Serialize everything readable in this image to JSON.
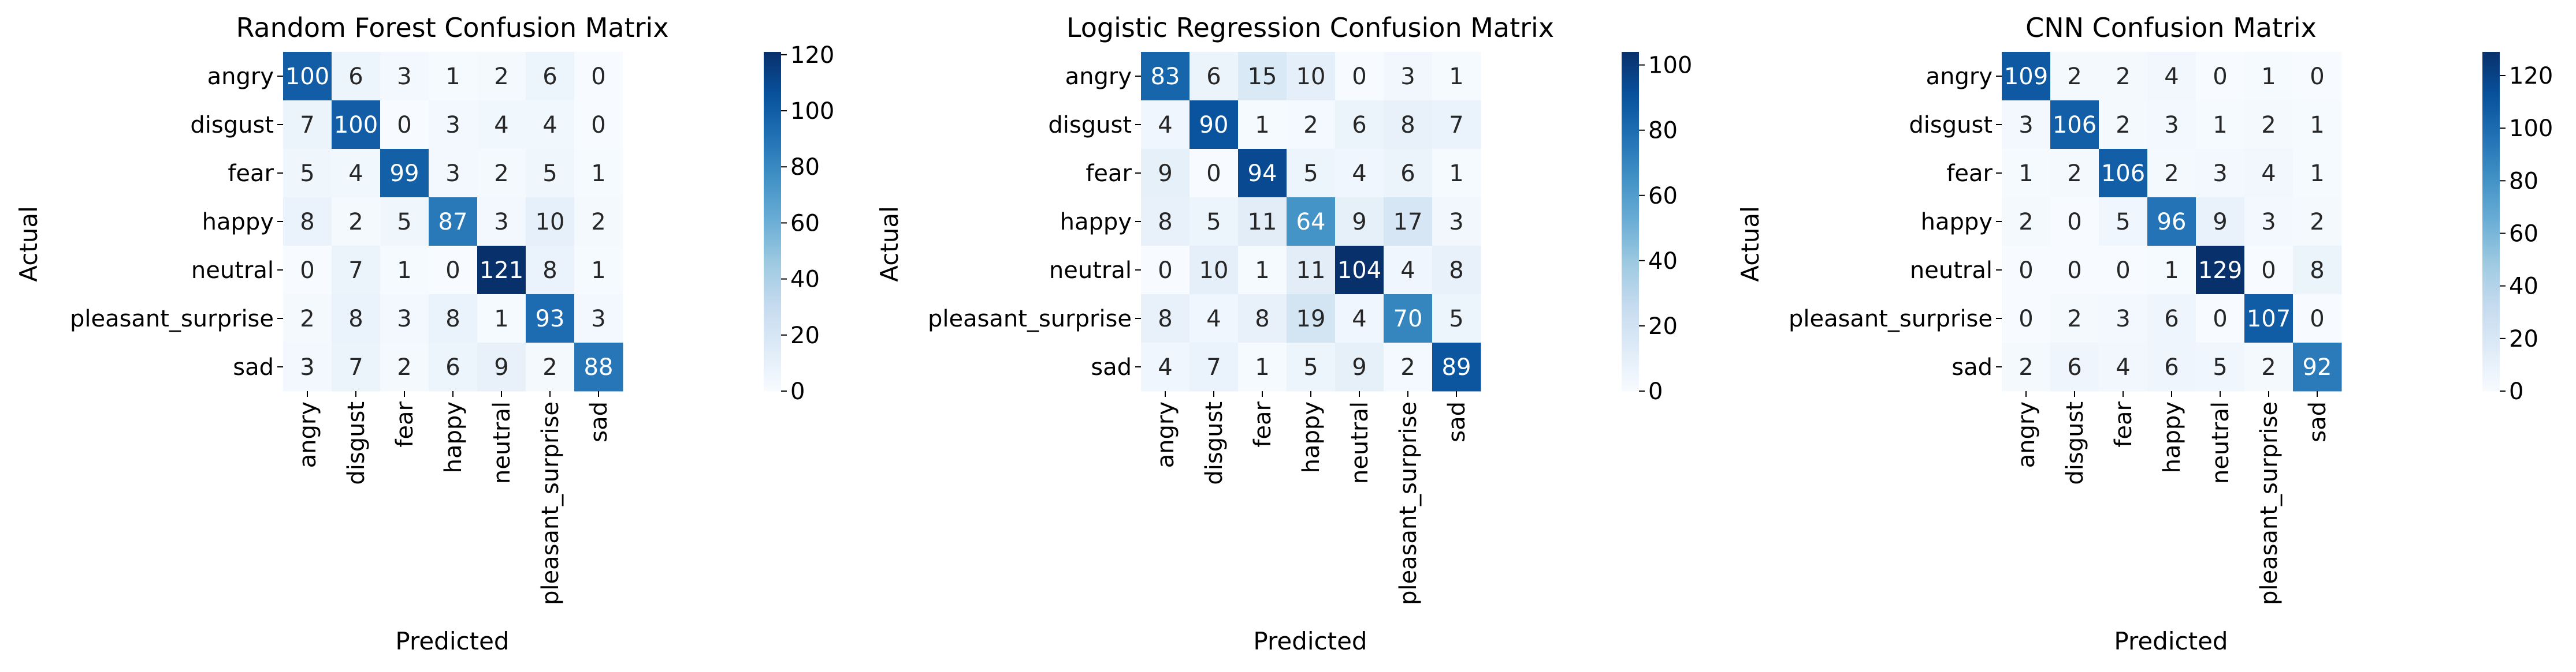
{
  "classes": [
    "angry",
    "disgust",
    "fear",
    "happy",
    "neutral",
    "pleasant_surprise",
    "sad"
  ],
  "chart_data": [
    {
      "type": "heatmap",
      "title": "Random Forest Confusion Matrix",
      "xlabel": "Predicted",
      "ylabel": "Actual",
      "x_categories": [
        "angry",
        "disgust",
        "fear",
        "happy",
        "neutral",
        "pleasant_surprise",
        "sad"
      ],
      "y_categories": [
        "angry",
        "disgust",
        "fear",
        "happy",
        "neutral",
        "pleasant_surprise",
        "sad"
      ],
      "values": [
        [
          100,
          6,
          3,
          1,
          2,
          6,
          0
        ],
        [
          7,
          100,
          0,
          3,
          4,
          4,
          0
        ],
        [
          5,
          4,
          99,
          3,
          2,
          5,
          1
        ],
        [
          8,
          2,
          5,
          87,
          3,
          10,
          2
        ],
        [
          0,
          7,
          1,
          0,
          121,
          8,
          1
        ],
        [
          2,
          8,
          3,
          8,
          1,
          93,
          3
        ],
        [
          3,
          7,
          2,
          6,
          9,
          2,
          88
        ]
      ],
      "colorbar_range": [
        0,
        121
      ],
      "colorbar_ticks": [
        "0",
        "20",
        "40",
        "60",
        "80",
        "100",
        "120"
      ],
      "colormap": "Blues"
    },
    {
      "type": "heatmap",
      "title": "Logistic Regression Confusion Matrix",
      "xlabel": "Predicted",
      "ylabel": "Actual",
      "x_categories": [
        "angry",
        "disgust",
        "fear",
        "happy",
        "neutral",
        "pleasant_surprise",
        "sad"
      ],
      "y_categories": [
        "angry",
        "disgust",
        "fear",
        "happy",
        "neutral",
        "pleasant_surprise",
        "sad"
      ],
      "values": [
        [
          83,
          6,
          15,
          10,
          0,
          3,
          1
        ],
        [
          4,
          90,
          1,
          2,
          6,
          8,
          7
        ],
        [
          9,
          0,
          94,
          5,
          4,
          6,
          1
        ],
        [
          8,
          5,
          11,
          64,
          9,
          17,
          3
        ],
        [
          0,
          10,
          1,
          11,
          104,
          4,
          8
        ],
        [
          8,
          4,
          8,
          19,
          4,
          70,
          5
        ],
        [
          4,
          7,
          1,
          5,
          9,
          2,
          89
        ]
      ],
      "colorbar_range": [
        0,
        104
      ],
      "colorbar_ticks": [
        "0",
        "20",
        "40",
        "60",
        "80",
        "100"
      ],
      "colormap": "Blues"
    },
    {
      "type": "heatmap",
      "title": "CNN Confusion Matrix",
      "xlabel": "Predicted",
      "ylabel": "Actual",
      "x_categories": [
        "angry",
        "disgust",
        "fear",
        "happy",
        "neutral",
        "pleasant_surprise",
        "sad"
      ],
      "y_categories": [
        "angry",
        "disgust",
        "fear",
        "happy",
        "neutral",
        "pleasant_surprise",
        "sad"
      ],
      "values": [
        [
          109,
          2,
          2,
          4,
          0,
          1,
          0
        ],
        [
          3,
          106,
          2,
          3,
          1,
          2,
          1
        ],
        [
          1,
          2,
          106,
          2,
          3,
          4,
          1
        ],
        [
          2,
          0,
          5,
          96,
          9,
          3,
          2
        ],
        [
          0,
          0,
          0,
          1,
          129,
          0,
          8
        ],
        [
          0,
          2,
          3,
          6,
          0,
          107,
          0
        ],
        [
          2,
          6,
          4,
          6,
          5,
          2,
          92
        ]
      ],
      "colorbar_range": [
        0,
        129
      ],
      "colorbar_ticks": [
        "0",
        "20",
        "40",
        "60",
        "80",
        "100",
        "120"
      ],
      "colormap": "Blues"
    }
  ]
}
